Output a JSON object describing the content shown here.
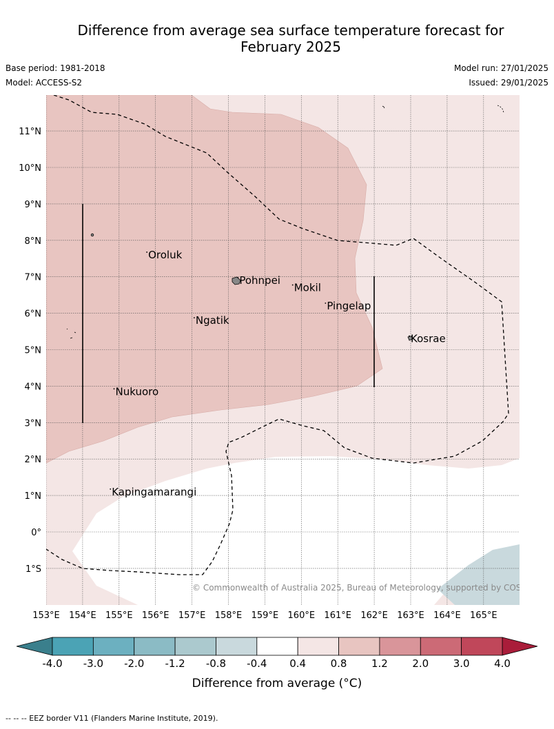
{
  "title": {
    "line1": "Difference from average sea surface temperature forecast for",
    "line2": "February 2025"
  },
  "meta": {
    "base_period": "Base period: 1981-2018",
    "model": "Model: ACCESS-S2",
    "model_run": "Model run: 27/01/2025",
    "issued": "Issued: 29/01/2025"
  },
  "map": {
    "lon_labels": [
      "153°E",
      "154°E",
      "155°E",
      "156°E",
      "157°E",
      "158°E",
      "159°E",
      "160°E",
      "161°E",
      "162°E",
      "163°E",
      "164°E",
      "165°E"
    ],
    "lat_labels": [
      "11°N",
      "10°N",
      "9°N",
      "8°N",
      "7°N",
      "6°N",
      "5°N",
      "4°N",
      "3°N",
      "2°N",
      "1°N",
      "0°",
      "1°S"
    ],
    "places": [
      {
        "name": "Oroluk",
        "lon": 155.8,
        "lat": 7.6
      },
      {
        "name": "Pohnpei",
        "lon": 158.3,
        "lat": 6.9
      },
      {
        "name": "Mokil",
        "lon": 159.8,
        "lat": 6.7
      },
      {
        "name": "Pingelap",
        "lon": 160.7,
        "lat": 6.2
      },
      {
        "name": "Ngatik",
        "lon": 157.1,
        "lat": 5.8
      },
      {
        "name": "Kosrae",
        "lon": 163.0,
        "lat": 5.3
      },
      {
        "name": "Nukuoro",
        "lon": 154.9,
        "lat": 3.85
      },
      {
        "name": "Kapingamarangi",
        "lon": 154.8,
        "lat": 1.1
      }
    ],
    "copyright": "© Commonwealth of Australia 2025, Bureau of Meteorology, supported by COSPPac"
  },
  "colorbar": {
    "ticks": [
      "-4.0",
      "-3.0",
      "-2.0",
      "-1.2",
      "-0.8",
      "-0.4",
      "0.4",
      "0.8",
      "1.2",
      "2.0",
      "3.0",
      "4.0"
    ],
    "colors": [
      "#4ba3b5",
      "#6cb0c0",
      "#8bbbc5",
      "#abc9ce",
      "#c9d9dd",
      "#ffffff",
      "#f4e6e5",
      "#e8c5c1",
      "#d9959a",
      "#cc6a76",
      "#c0475a"
    ],
    "under_color": "#3a7f8c",
    "over_color": "#a91d3a",
    "label": "Difference from average (°C)"
  },
  "footnote": "--  --  -- EEZ border V11 (Flanders Marine Institute, 2019)."
}
